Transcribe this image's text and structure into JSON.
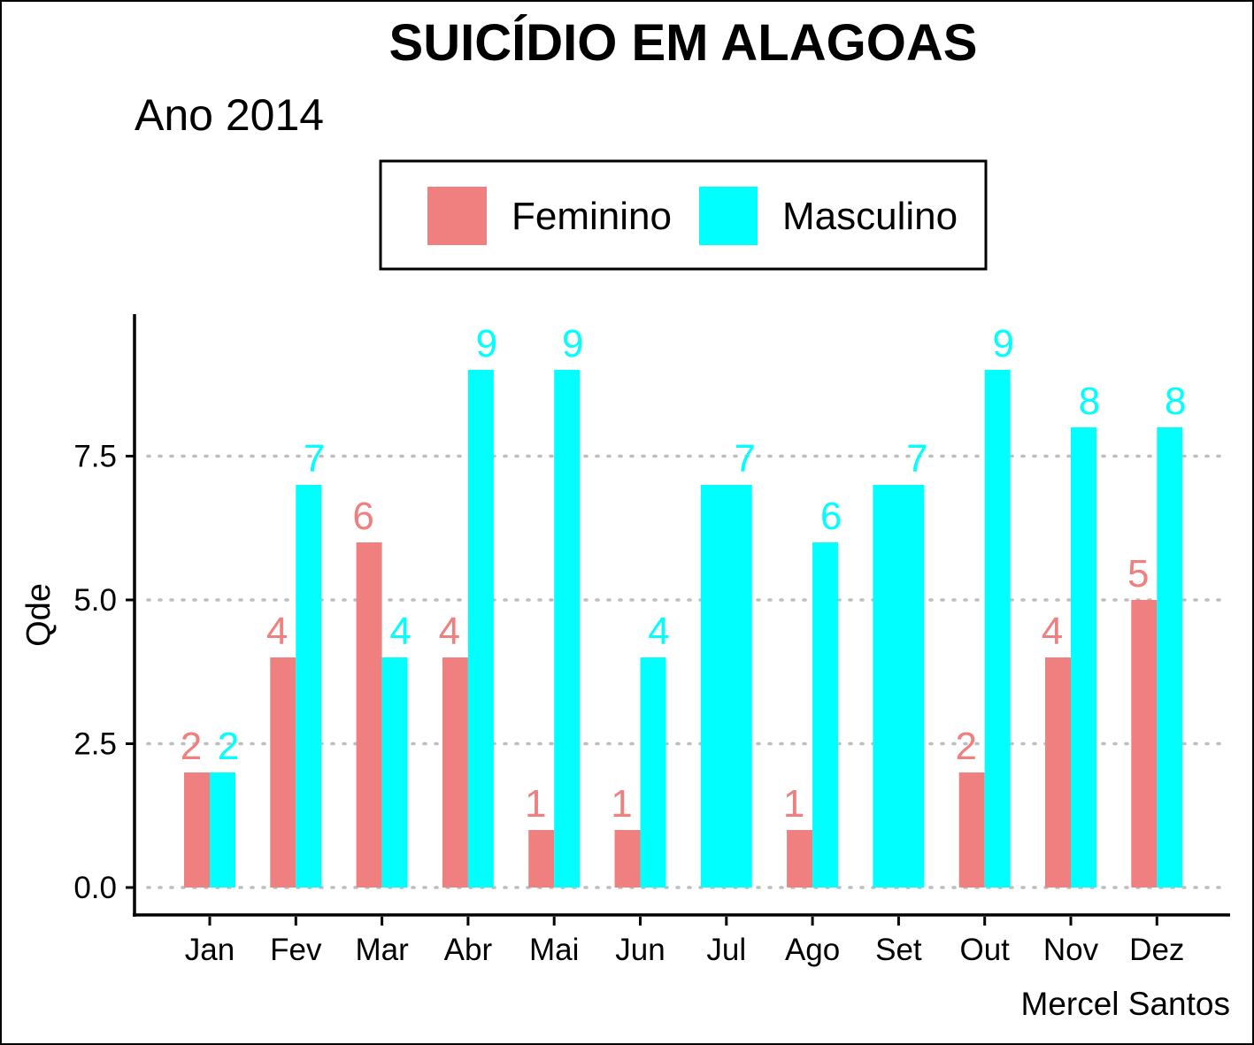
{
  "chart_data": {
    "type": "bar",
    "title": "SUICÍDIO EM ALAGOAS",
    "subtitle": "Ano 2014",
    "caption": "Mercel Santos",
    "xlabel": "",
    "ylabel": "Qde",
    "ylim": [
      0,
      9
    ],
    "yticks": [
      "0.0",
      "2.5",
      "5.0",
      "7.5"
    ],
    "ytick_values": [
      0,
      2.5,
      5,
      7.5
    ],
    "grid": "horizontal dotted",
    "legend_position": "top",
    "categories": [
      "Jan",
      "Fev",
      "Mar",
      "Abr",
      "Mai",
      "Jun",
      "Jul",
      "Ago",
      "Set",
      "Out",
      "Nov",
      "Dez"
    ],
    "series": [
      {
        "name": "Feminino",
        "color": "#F08080",
        "values": [
          2,
          4,
          6,
          4,
          1,
          1,
          null,
          1,
          null,
          2,
          4,
          5
        ]
      },
      {
        "name": "Masculino",
        "color": "#00FFFF",
        "values": [
          2,
          7,
          4,
          9,
          9,
          4,
          7,
          6,
          7,
          9,
          8,
          8
        ]
      }
    ]
  }
}
